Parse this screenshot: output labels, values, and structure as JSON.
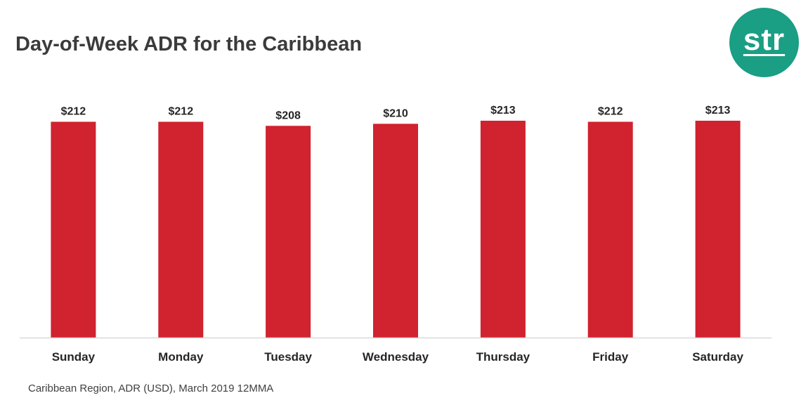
{
  "title": "Day-of-Week ADR for the Caribbean",
  "logo": {
    "text": "str",
    "color": "#1a9e84"
  },
  "footnote": "Caribbean Region, ADR (USD), March 2019 12MMA",
  "chart_data": {
    "type": "bar",
    "title": "Day-of-Week ADR for the Caribbean",
    "categories": [
      "Sunday",
      "Monday",
      "Tuesday",
      "Wednesday",
      "Thursday",
      "Friday",
      "Saturday"
    ],
    "values": [
      212,
      212,
      208,
      210,
      213,
      212,
      213
    ],
    "data_labels": [
      "$212",
      "$212",
      "$208",
      "$210",
      "$213",
      "$212",
      "$213"
    ],
    "xlabel": "",
    "ylabel": "",
    "ylim": [
      0,
      213
    ],
    "grid": false,
    "legend": "none",
    "bar_color": "#d0222f",
    "axis_color": "#d9d9d9"
  }
}
